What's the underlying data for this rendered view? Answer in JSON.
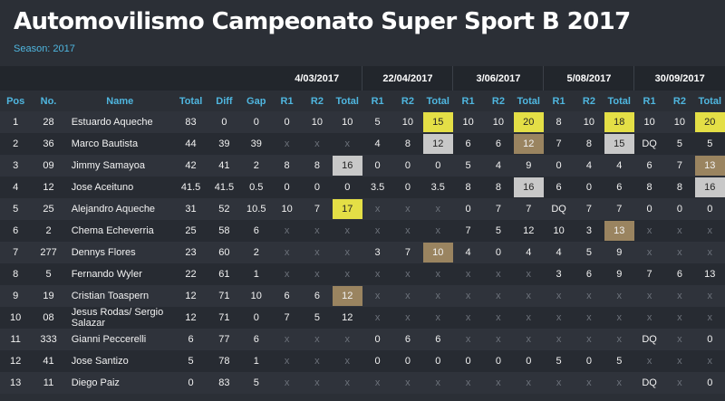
{
  "header": {
    "title": "Automovilismo Campeonato Super Sport B 2017",
    "season": "Season: 2017"
  },
  "dates": [
    "4/03/2017",
    "22/04/2017",
    "3/06/2017",
    "5/08/2017",
    "30/09/2017"
  ],
  "columns": [
    "Pos",
    "No.",
    "Name",
    "Total",
    "Diff",
    "Gap",
    "R1",
    "R2",
    "Total",
    "R1",
    "R2",
    "Total",
    "R1",
    "R2",
    "Total",
    "R1",
    "R2",
    "Total",
    "R1",
    "R2",
    "Total"
  ],
  "rows": [
    {
      "pos": "1",
      "no": "28",
      "name": "Estuardo Aqueche",
      "total": "83",
      "diff": "0",
      "gap": "0",
      "events": [
        [
          "0",
          "10",
          "10"
        ],
        [
          "5",
          "10",
          "15"
        ],
        [
          "10",
          "10",
          "20"
        ],
        [
          "8",
          "10",
          "18"
        ],
        [
          "10",
          "10",
          "20"
        ]
      ],
      "highlights": [
        "",
        "gold",
        "gold",
        "gold",
        "gold"
      ]
    },
    {
      "pos": "2",
      "no": "36",
      "name": "Marco Bautista",
      "total": "44",
      "diff": "39",
      "gap": "39",
      "events": [
        [
          "x",
          "x",
          "x"
        ],
        [
          "4",
          "8",
          "12"
        ],
        [
          "6",
          "6",
          "12"
        ],
        [
          "7",
          "8",
          "15"
        ],
        [
          "DQ",
          "5",
          "5"
        ]
      ],
      "highlights": [
        "",
        "silver",
        "bronze",
        "silver",
        ""
      ]
    },
    {
      "pos": "3",
      "no": "09",
      "name": "Jimmy Samayoa",
      "total": "42",
      "diff": "41",
      "gap": "2",
      "events": [
        [
          "8",
          "8",
          "16"
        ],
        [
          "0",
          "0",
          "0"
        ],
        [
          "5",
          "4",
          "9"
        ],
        [
          "0",
          "4",
          "4"
        ],
        [
          "6",
          "7",
          "13"
        ]
      ],
      "highlights": [
        "silver",
        "",
        "",
        "",
        "bronze"
      ]
    },
    {
      "pos": "4",
      "no": "12",
      "name": "Jose Aceituno",
      "total": "41.5",
      "diff": "41.5",
      "gap": "0.5",
      "events": [
        [
          "0",
          "0",
          "0"
        ],
        [
          "3.5",
          "0",
          "3.5"
        ],
        [
          "8",
          "8",
          "16"
        ],
        [
          "6",
          "0",
          "6"
        ],
        [
          "8",
          "8",
          "16"
        ]
      ],
      "highlights": [
        "",
        "",
        "silver",
        "",
        "silver"
      ]
    },
    {
      "pos": "5",
      "no": "25",
      "name": "Alejandro Aqueche",
      "total": "31",
      "diff": "52",
      "gap": "10.5",
      "events": [
        [
          "10",
          "7",
          "17"
        ],
        [
          "x",
          "x",
          "x"
        ],
        [
          "0",
          "7",
          "7"
        ],
        [
          "DQ",
          "7",
          "7"
        ],
        [
          "0",
          "0",
          "0"
        ]
      ],
      "highlights": [
        "gold",
        "",
        "",
        "",
        ""
      ]
    },
    {
      "pos": "6",
      "no": "2",
      "name": "Chema Echeverria",
      "total": "25",
      "diff": "58",
      "gap": "6",
      "events": [
        [
          "x",
          "x",
          "x"
        ],
        [
          "x",
          "x",
          "x"
        ],
        [
          "7",
          "5",
          "12"
        ],
        [
          "10",
          "3",
          "13"
        ],
        [
          "x",
          "x",
          "x"
        ]
      ],
      "highlights": [
        "",
        "",
        "",
        "bronze",
        ""
      ]
    },
    {
      "pos": "7",
      "no": "277",
      "name": "Dennys Flores",
      "total": "23",
      "diff": "60",
      "gap": "2",
      "events": [
        [
          "x",
          "x",
          "x"
        ],
        [
          "3",
          "7",
          "10"
        ],
        [
          "4",
          "0",
          "4"
        ],
        [
          "4",
          "5",
          "9"
        ],
        [
          "x",
          "x",
          "x"
        ]
      ],
      "highlights": [
        "",
        "bronze",
        "",
        "",
        ""
      ]
    },
    {
      "pos": "8",
      "no": "5",
      "name": "Fernando Wyler",
      "total": "22",
      "diff": "61",
      "gap": "1",
      "events": [
        [
          "x",
          "x",
          "x"
        ],
        [
          "x",
          "x",
          "x"
        ],
        [
          "x",
          "x",
          "x"
        ],
        [
          "3",
          "6",
          "9"
        ],
        [
          "7",
          "6",
          "13"
        ]
      ],
      "highlights": [
        "",
        "",
        "",
        "",
        ""
      ]
    },
    {
      "pos": "9",
      "no": "19",
      "name": "Cristian Toaspern",
      "total": "12",
      "diff": "71",
      "gap": "10",
      "events": [
        [
          "6",
          "6",
          "12"
        ],
        [
          "x",
          "x",
          "x"
        ],
        [
          "x",
          "x",
          "x"
        ],
        [
          "x",
          "x",
          "x"
        ],
        [
          "x",
          "x",
          "x"
        ]
      ],
      "highlights": [
        "bronze",
        "",
        "",
        "",
        ""
      ]
    },
    {
      "pos": "10",
      "no": "08",
      "name": "Jesus Rodas/ Sergio Salazar",
      "total": "12",
      "diff": "71",
      "gap": "0",
      "events": [
        [
          "7",
          "5",
          "12"
        ],
        [
          "x",
          "x",
          "x"
        ],
        [
          "x",
          "x",
          "x"
        ],
        [
          "x",
          "x",
          "x"
        ],
        [
          "x",
          "x",
          "x"
        ]
      ],
      "highlights": [
        "",
        "",
        "",
        "",
        ""
      ]
    },
    {
      "pos": "11",
      "no": "333",
      "name": "Gianni Peccerelli",
      "total": "6",
      "diff": "77",
      "gap": "6",
      "events": [
        [
          "x",
          "x",
          "x"
        ],
        [
          "0",
          "6",
          "6"
        ],
        [
          "x",
          "x",
          "x"
        ],
        [
          "x",
          "x",
          "x"
        ],
        [
          "DQ",
          "x",
          "0"
        ]
      ],
      "highlights": [
        "",
        "",
        "",
        "",
        ""
      ]
    },
    {
      "pos": "12",
      "no": "41",
      "name": "Jose Santizo",
      "total": "5",
      "diff": "78",
      "gap": "1",
      "events": [
        [
          "x",
          "x",
          "x"
        ],
        [
          "0",
          "0",
          "0"
        ],
        [
          "0",
          "0",
          "0"
        ],
        [
          "5",
          "0",
          "5"
        ],
        [
          "x",
          "x",
          "x"
        ]
      ],
      "highlights": [
        "",
        "",
        "",
        "",
        ""
      ]
    },
    {
      "pos": "13",
      "no": "11",
      "name": "Diego Paiz",
      "total": "0",
      "diff": "83",
      "gap": "5",
      "events": [
        [
          "x",
          "x",
          "x"
        ],
        [
          "x",
          "x",
          "x"
        ],
        [
          "x",
          "x",
          "x"
        ],
        [
          "x",
          "x",
          "x"
        ],
        [
          "DQ",
          "x",
          "0"
        ]
      ],
      "highlights": [
        "",
        "",
        "",
        "",
        ""
      ]
    }
  ],
  "colors": {
    "background": "#2b2f36",
    "accent": "#4fb6df",
    "gold": "#e4df46",
    "silver": "#c8c8c8",
    "bronze": "#9a8460"
  }
}
